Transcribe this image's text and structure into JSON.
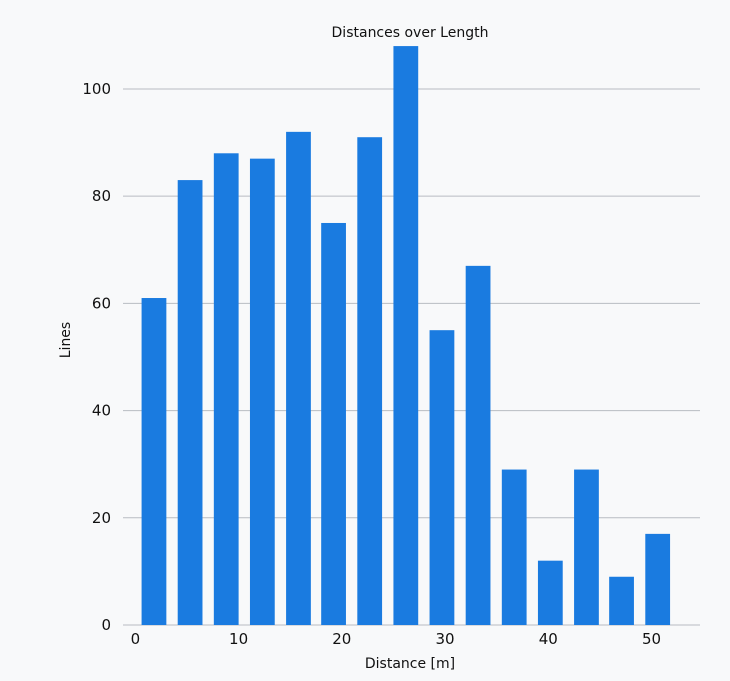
{
  "chart_data": {
    "type": "bar",
    "title": "Distances over Length",
    "xlabel": "Distance [m]",
    "ylabel": "Lines",
    "x": [
      1.8,
      5.3,
      8.8,
      12.3,
      15.8,
      19.2,
      22.7,
      26.2,
      29.7,
      33.2,
      36.7,
      40.2,
      43.7,
      47.1,
      50.6
    ],
    "values": [
      61,
      83,
      88,
      87,
      92,
      75,
      91,
      108,
      55,
      67,
      29,
      12,
      29,
      9,
      17
    ],
    "bar_width": 2.4,
    "xlim": [
      -1.2,
      54.7
    ],
    "ylim": [
      0,
      111
    ],
    "xticks": [
      0,
      10,
      20,
      30,
      40,
      50
    ],
    "yticks": [
      0,
      20,
      40,
      60,
      80,
      100
    ],
    "grid": "horizontal",
    "color": "#1a7be0"
  }
}
